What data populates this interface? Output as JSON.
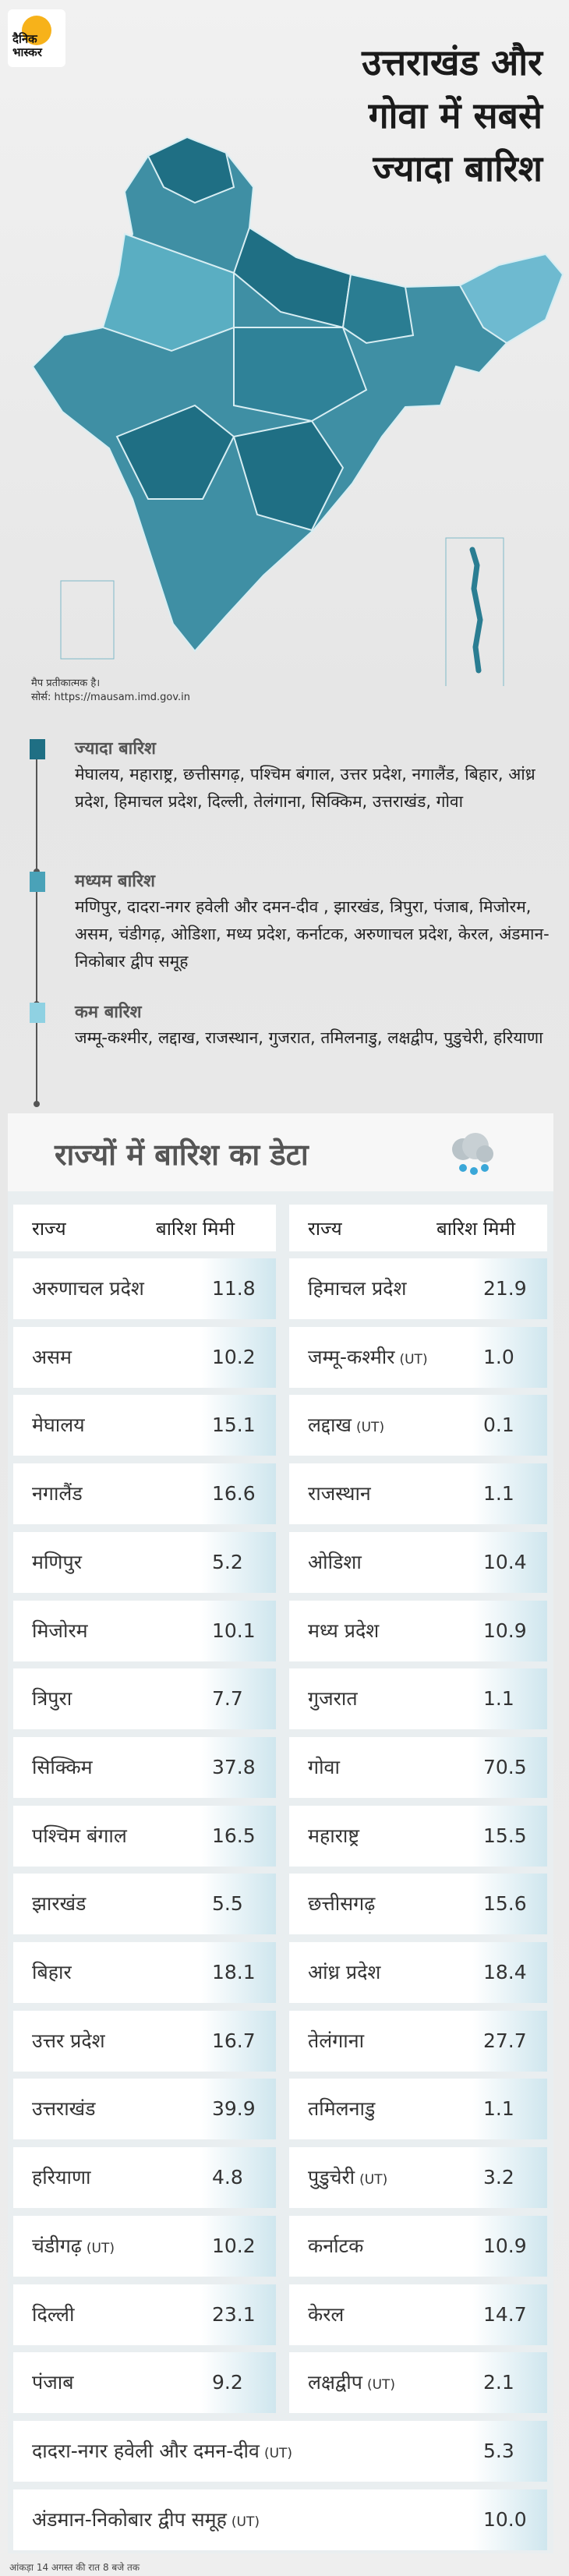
{
  "header": {
    "logo": [
      "दैनिक",
      "भास्कर"
    ],
    "title": [
      "उत्तराखंड और",
      "गोवा में सबसे",
      "ज्यादा बारिश"
    ]
  },
  "map_note": {
    "disclaimer": "मैप प्रतीकात्मक है।",
    "source": "सोर्स: https://mausam.imd.gov.in"
  },
  "legend": [
    {
      "label": "ज्यादा बारिश",
      "color": "#1f6f84",
      "states": "मेघालय, महाराष्ट्र, छत्तीसगढ़, पश्चिम बंगाल, उत्तर प्रदेश, नगालैंड, बिहार, आंध्र प्रदेश, हिमाचल प्रदेश, दिल्ली, तेलंगाना, सिक्किम, उत्तराखंड, गोवा"
    },
    {
      "label": "मध्यम बारिश",
      "color": "#4aa2b8",
      "states": "मणिपुर, दादरा-नगर हवेली और दमन-दीव , झारखंड, त्रिपुरा, पंजाब, मिजोरम, असम, चंडीगढ़, ओडिशा, मध्य प्रदेश, कर्नाटक, अरुणाचल प्रदेश, केरल, अंडमान-निकोबार द्वीप समूह"
    },
    {
      "label": "कम बारिश",
      "color": "#8fd1e2",
      "states": "जम्मू-कश्मीर, लद्दाख, राजस्थान, गुजरात, तमिलनाडु, लक्षद्वीप, पुडुचेरी, हरियाणा"
    }
  ],
  "table": {
    "title": "राज्यों में बारिश का डेटा",
    "headers": [
      "राज्य",
      "बारिश मिमी"
    ],
    "rows": [
      [
        {
          "name": "अरुणाचल प्रदेश",
          "value": "11.8"
        },
        {
          "name": "हिमाचल प्रदेश",
          "value": "21.9"
        }
      ],
      [
        {
          "name": "असम",
          "value": "10.2"
        },
        {
          "name": "जम्मू-कश्मीर",
          "tag": "(UT)",
          "value": "1.0"
        }
      ],
      [
        {
          "name": "मेघालय",
          "value": "15.1"
        },
        {
          "name": "लद्दाख",
          "tag": "(UT)",
          "value": "0.1"
        }
      ],
      [
        {
          "name": "नगालैंड",
          "value": "16.6"
        },
        {
          "name": "राजस्थान",
          "value": "1.1"
        }
      ],
      [
        {
          "name": "मणिपुर",
          "value": "5.2"
        },
        {
          "name": "ओडिशा",
          "value": "10.4"
        }
      ],
      [
        {
          "name": "मिजोरम",
          "value": "10.1"
        },
        {
          "name": "मध्य प्रदेश",
          "value": "10.9"
        }
      ],
      [
        {
          "name": "त्रिपुरा",
          "value": "7.7"
        },
        {
          "name": "गुजरात",
          "value": "1.1"
        }
      ],
      [
        {
          "name": "सिक्किम",
          "value": "37.8"
        },
        {
          "name": "गोवा",
          "value": "70.5"
        }
      ],
      [
        {
          "name": "पश्चिम बंगाल",
          "value": "16.5"
        },
        {
          "name": "महाराष्ट्र",
          "value": "15.5"
        }
      ],
      [
        {
          "name": "झारखंड",
          "value": "5.5"
        },
        {
          "name": "छत्तीसगढ़",
          "value": "15.6"
        }
      ],
      [
        {
          "name": "बिहार",
          "value": "18.1"
        },
        {
          "name": "आंध्र प्रदेश",
          "value": "18.4"
        }
      ],
      [
        {
          "name": "उत्तर प्रदेश",
          "value": "16.7"
        },
        {
          "name": "तेलंगाना",
          "value": "27.7"
        }
      ],
      [
        {
          "name": "उत्तराखंड",
          "value": "39.9"
        },
        {
          "name": "तमिलनाडु",
          "value": "1.1"
        }
      ],
      [
        {
          "name": "हरियाणा",
          "value": "4.8"
        },
        {
          "name": "पुडुचेरी",
          "tag": "(UT)",
          "value": "3.2"
        }
      ],
      [
        {
          "name": "चंडीगढ़",
          "tag": "(UT)",
          "value": "10.2"
        },
        {
          "name": "कर्नाटक",
          "value": "10.9"
        }
      ],
      [
        {
          "name": "दिल्ली",
          "value": "23.1"
        },
        {
          "name": "केरल",
          "value": "14.7"
        }
      ],
      [
        {
          "name": "पंजाब",
          "value": "9.2"
        },
        {
          "name": "लक्षद्वीप",
          "tag": "(UT)",
          "value": "2.1"
        }
      ]
    ],
    "full_rows": [
      {
        "name": "दादरा-नगर हवेली और दमन-दीव",
        "tag": "(UT)",
        "value": "5.3"
      },
      {
        "name": "अंडमान-निकोबार द्वीप समूह",
        "tag": "(UT)",
        "value": "10.0"
      }
    ]
  },
  "footnote": "आंकड़ा 14 अगस्त की रात 8 बजे तक"
}
